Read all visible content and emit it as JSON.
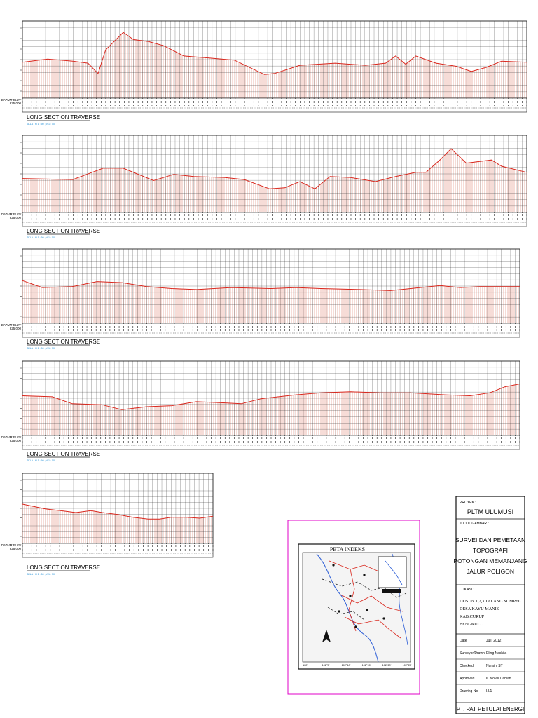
{
  "sheet": {
    "section_title": "LONG SECTION TRAVERSE",
    "scale_note": "SKLA : H 1 : 50 ; V 1 : 50",
    "datum_label": "DATUM ELEV",
    "datum_value": "825.000"
  },
  "chart_data": [
    {
      "type": "line",
      "title": "LONG SECTION TRAVERSE",
      "datum": 825,
      "ylim": [
        825,
        900
      ],
      "grid": true,
      "series": [
        {
          "color": "#d9261c",
          "x": [
            0,
            0.05,
            0.1,
            0.13,
            0.15,
            0.165,
            0.2,
            0.22,
            0.25,
            0.28,
            0.32,
            0.37,
            0.42,
            0.48,
            0.5,
            0.55,
            0.62,
            0.68,
            0.72,
            0.7,
            0.74,
            0.76,
            0.78,
            0.82,
            0.86,
            0.89,
            0.92,
            0.95,
            1
          ],
          "values": [
            860,
            863,
            861,
            859,
            849,
            872,
            889,
            882,
            880,
            876,
            866,
            864,
            862,
            848,
            849,
            857,
            859,
            857,
            859,
            858,
            866,
            858,
            866,
            859,
            856,
            851,
            855,
            861,
            860
          ]
        }
      ]
    },
    {
      "type": "line",
      "title": "LONG SECTION TRAVERSE",
      "datum": 825,
      "ylim": [
        825,
        900
      ],
      "grid": true,
      "series": [
        {
          "color": "#d9261c",
          "x": [
            0,
            0.1,
            0.16,
            0.2,
            0.26,
            0.3,
            0.34,
            0.4,
            0.44,
            0.49,
            0.52,
            0.55,
            0.58,
            0.61,
            0.65,
            0.7,
            0.74,
            0.78,
            0.8,
            0.83,
            0.85,
            0.88,
            0.93,
            0.95,
            1
          ],
          "values": [
            858,
            857,
            868,
            868,
            856,
            862,
            860,
            859,
            857,
            848,
            849,
            855,
            848,
            860,
            859,
            855,
            860,
            864,
            864,
            877,
            887,
            873,
            876,
            870,
            864
          ]
        }
      ]
    },
    {
      "type": "line",
      "title": "LONG SECTION TRAVERSE",
      "datum": 825,
      "ylim": [
        825,
        900
      ],
      "grid": true,
      "series": [
        {
          "color": "#d9261c",
          "x": [
            0,
            0.04,
            0.1,
            0.15,
            0.2,
            0.25,
            0.3,
            0.35,
            0.42,
            0.5,
            0.55,
            0.6,
            0.68,
            0.74,
            0.8,
            0.84,
            0.88,
            0.92,
            0.96,
            1
          ],
          "values": [
            868,
            861,
            862,
            867,
            866,
            862,
            860,
            859,
            861,
            860,
            861,
            860,
            859,
            858,
            861,
            863,
            861,
            862,
            862,
            862
          ]
        }
      ]
    },
    {
      "type": "line",
      "title": "LONG SECTION TRAVERSE",
      "datum": 825,
      "ylim": [
        825,
        900
      ],
      "grid": true,
      "series": [
        {
          "color": "#d9261c",
          "x": [
            0,
            0.06,
            0.1,
            0.16,
            0.2,
            0.25,
            0.3,
            0.35,
            0.4,
            0.44,
            0.48,
            0.55,
            0.6,
            0.66,
            0.72,
            0.78,
            0.85,
            0.9,
            0.94,
            0.97,
            1
          ],
          "values": [
            865,
            864,
            857,
            856,
            851,
            854,
            855,
            859,
            858,
            857,
            862,
            866,
            868,
            869,
            868,
            868,
            866,
            865,
            868,
            874,
            877
          ]
        }
      ]
    },
    {
      "type": "line",
      "title": "LONG SECTION TRAVERSE",
      "datum": 825,
      "ylim": [
        825,
        900
      ],
      "grid": true,
      "series": [
        {
          "color": "#d9261c",
          "x": [
            0,
            0.05,
            0.12,
            0.2,
            0.28,
            0.36,
            0.42,
            0.5,
            0.58,
            0.66,
            0.72,
            0.78,
            0.86,
            0.93,
            1
          ],
          "values": [
            867,
            865,
            862,
            860,
            858,
            860,
            858,
            856,
            853,
            851,
            851,
            853,
            853,
            852,
            854
          ]
        }
      ]
    }
  ],
  "index_map": {
    "title": "PETA INDEKS",
    "bottom_ticks": [
      "102°",
      "102°5'",
      "102°10'",
      "102°15'",
      "102°20'",
      "102°25'"
    ]
  },
  "title_block": {
    "project_label": "PROYEK :",
    "project": "PLTM ULUMUSI",
    "drawing_title_label": "JUDUL GAMBAR :",
    "title_lines": [
      "SURVEI DAN PEMETAAN",
      "TOPOGRAFI",
      "POTONGAN MEMANJANG",
      "JALUR POLIGON"
    ],
    "location_label": "LOKASI :",
    "location_lines": [
      "DUSUN 1,2,3 TALANG SUMPEL",
      "DESA KAYU MANIS",
      "KAB.CURUP",
      "BENGKULU"
    ],
    "fields": [
      {
        "label": "Date",
        "value": "Juli, 2012"
      },
      {
        "label": "Surveyor/Drawn",
        "value": "Eling Naskita"
      },
      {
        "label": "Checked",
        "value": "Nuraini ST"
      },
      {
        "label": "Approved",
        "value": "Ir. Novel Dahlan"
      },
      {
        "label": "Drawing No",
        "value": "I.I.1"
      }
    ],
    "company": "PT. PAT PETULAI ENERGI",
    "colors": {
      "border": "#111111",
      "magenta_frame": "#e000c8"
    }
  },
  "colors": {
    "profile_line": "#d9261c",
    "fill_hatch": "#e38a7a",
    "grid": "#222222"
  }
}
